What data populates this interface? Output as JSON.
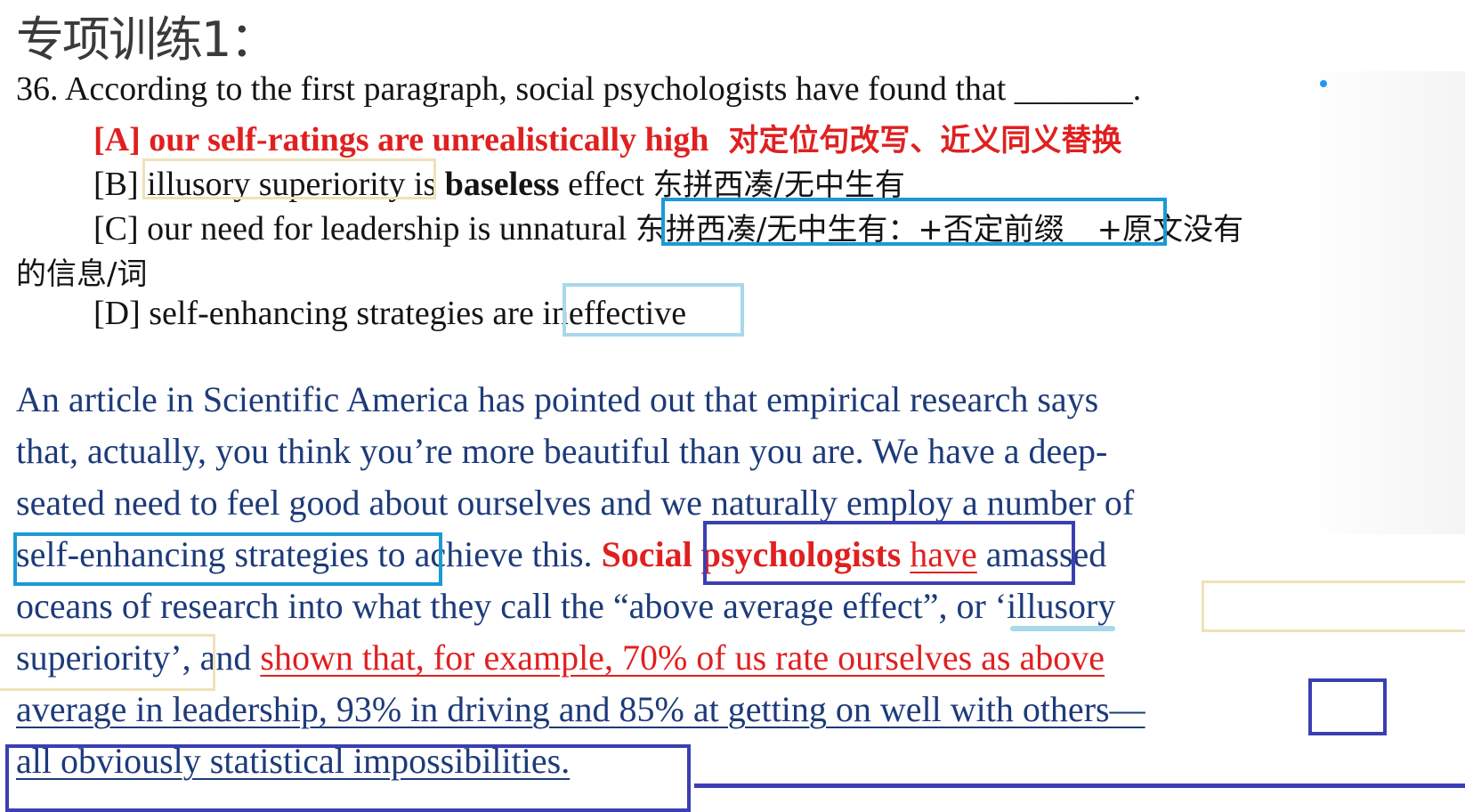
{
  "title": "专项训练1：",
  "question": {
    "stem": "36. According to the first paragraph, social psychologists have found that _______.",
    "A": {
      "label": "[A] our self-ratings are unrealistically high",
      "note": "对定位句改写、近义同义替换"
    },
    "B": {
      "prefix": "[B] ",
      "boxed": "illusory superiority",
      "mid1": " is ",
      "bold": "baseless",
      "mid2": " effect ",
      "note": "东拼西凑/无中生有"
    },
    "C": {
      "prefix": "[C] our need for leadership is unnatural ",
      "boxed_note": "东拼西凑/无中生有：+否定前缀",
      "note2": " +原文没有",
      "wrap": "的信息/词"
    },
    "D": {
      "prefix": "[D] self-enhancing strategies are ",
      "boxed": "ineffective"
    }
  },
  "passage": {
    "line1": "An article in Scientific America has pointed out that empirical research says",
    "line2": "that, actually, you think you’re more beautiful than you are. We have a deep-",
    "line3": "seated need to feel good about ourselves and we naturally employ a number of",
    "line4_a": "self-enhancing strategies",
    "line4_b": " to achieve this. ",
    "line4_c": "Social psychologists",
    "line4_d": " ",
    "line4_e": "have",
    "line4_f": " amassed",
    "line5": "oceans of research into what they call the “above average effect”, or ‘illusory",
    "line6_a": "superiority’, and ",
    "line6_b": "shown that, for example, 70% of us rate ourselves as above",
    "line7": "average in leadership, 93% in driving and 85% at getting on well with others—",
    "line8": "all obviously statistical impossibilities."
  },
  "colors": {
    "red": "#e02020",
    "navy": "#1d3b7a",
    "box_blue": "#1a9ad6",
    "box_light": "#a8d8ea",
    "box_tan": "#eee2b8",
    "box_purple": "#3b3fb2"
  }
}
